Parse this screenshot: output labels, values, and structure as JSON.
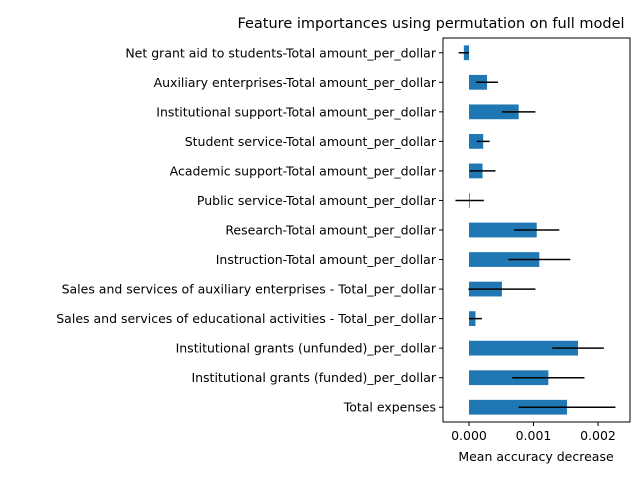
{
  "chart_data": {
    "type": "bar",
    "orientation": "horizontal",
    "title": "Feature importances using permutation on full model",
    "xlabel": "Mean accuracy decrease",
    "ylabel": "",
    "xlim": [
      -0.0004,
      0.0023
    ],
    "xticks": [
      "0.000",
      "0.001",
      "0.002"
    ],
    "bar_color": "#1f77b4",
    "error_color": "#000000",
    "categories": [
      "Net grant aid to students-Total amount_per_dollar",
      "Auxiliary enterprises-Total amount_per_dollar",
      "Institutional support-Total amount_per_dollar",
      "Student service-Total amount_per_dollar",
      "Academic support-Total amount_per_dollar",
      "Public service-Total amount_per_dollar",
      "Research-Total amount_per_dollar",
      "Instruction-Total amount_per_dollar",
      "Sales and services of auxiliary enterprises - Total_per_dollar",
      "Sales and services of educational activities - Total_per_dollar",
      "Institutional grants (unfunded)_per_dollar",
      "Institutional grants (funded)_per_dollar",
      "Total expenses"
    ],
    "values": [
      -8e-05,
      0.00028,
      0.00077,
      0.00022,
      0.00021,
      1e-05,
      0.00105,
      0.00109,
      0.00051,
      0.0001,
      0.00169,
      0.00123,
      0.00152
    ],
    "errors": [
      8e-05,
      0.00017,
      0.00026,
      0.0001,
      0.0002,
      0.00022,
      0.00035,
      0.00048,
      0.00052,
      0.0001,
      0.0004,
      0.00056,
      0.00075
    ]
  }
}
